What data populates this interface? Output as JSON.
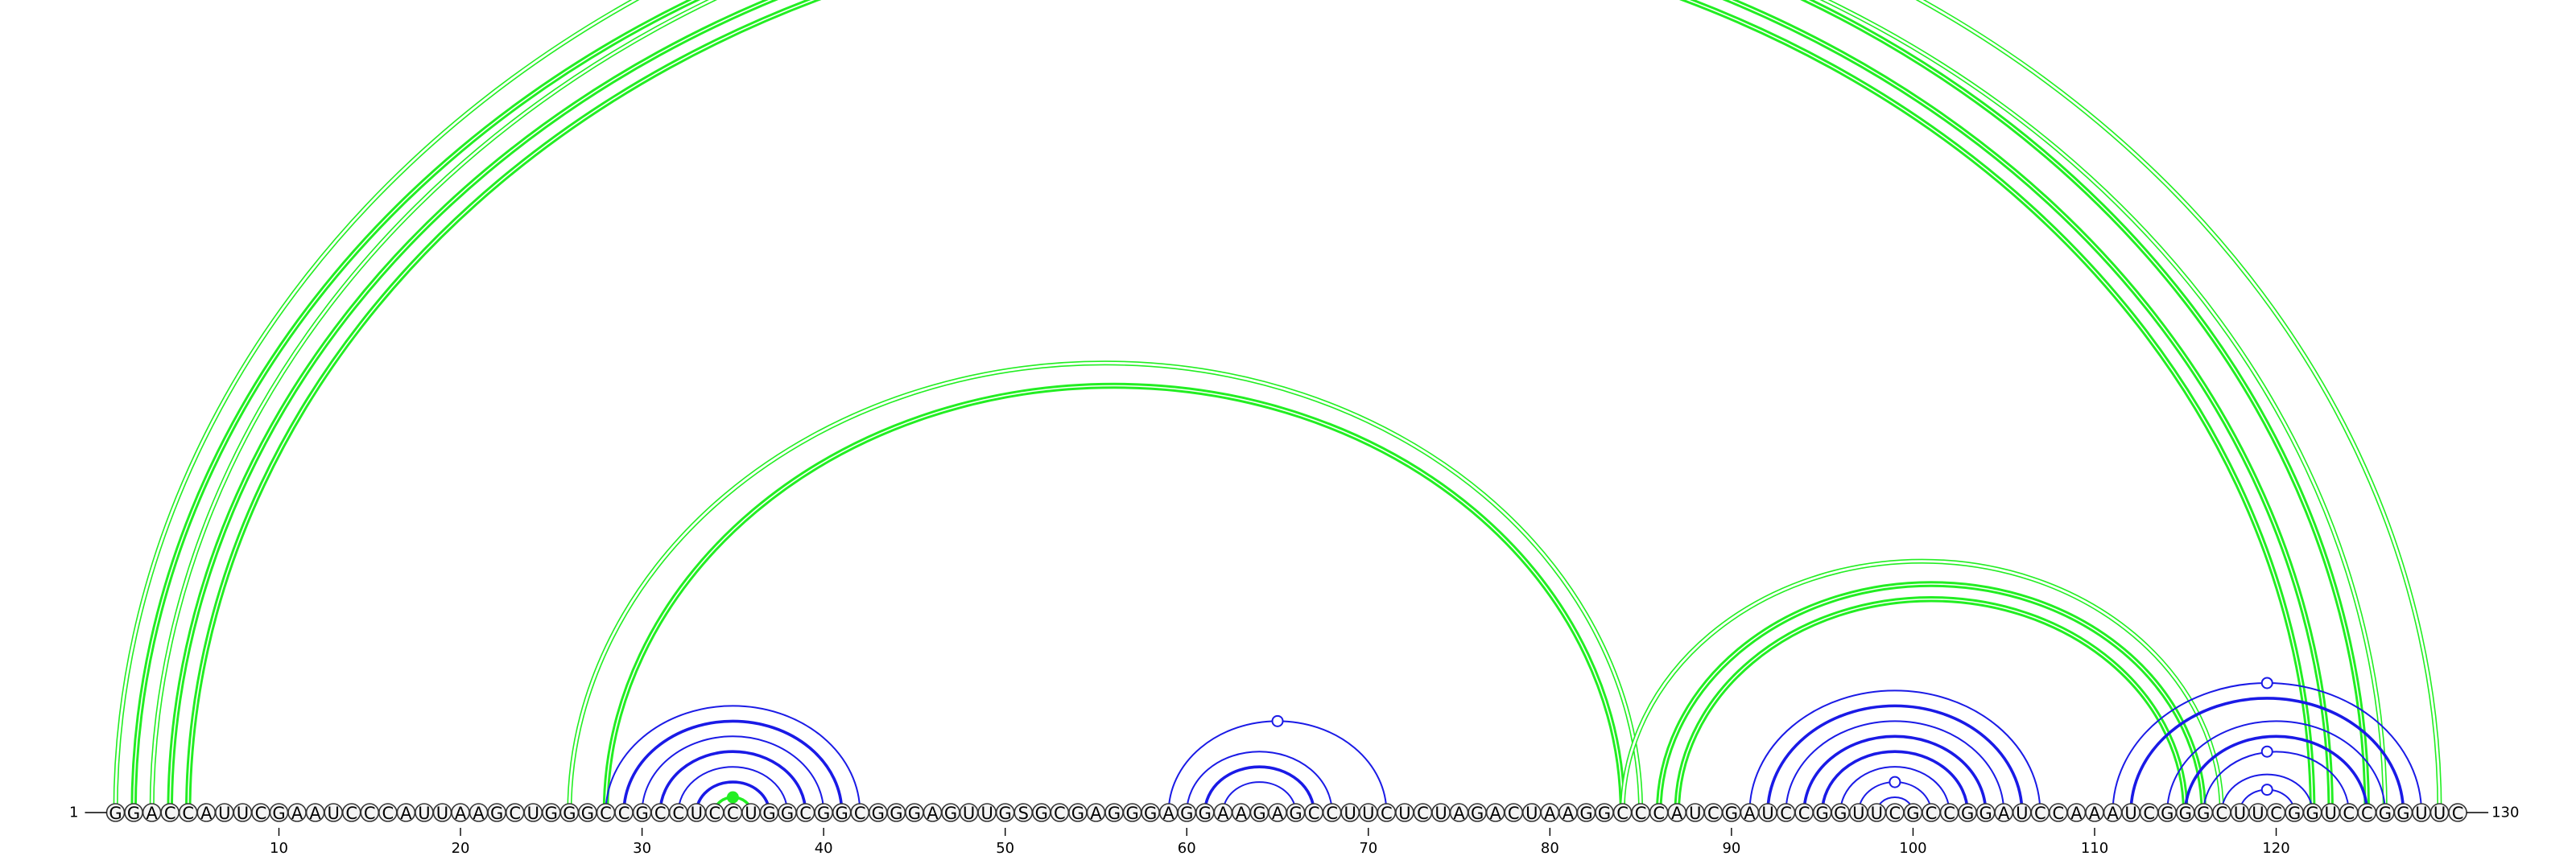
{
  "sequence": "GGACCAUUCGAAUCCCAUUAAGCUGGGCCGCCUCCUGGCGGCGGGAGUUGSGCGAGGGAGGAAGAGCCUUCUCUAGACUAAGGCCCAUCGAUCCGGUUCGCCGGAUCCAAAUCGGGCUUCGGUCCGGUUC",
  "start_label": "1",
  "end_label": "130",
  "ticks": [
    "10",
    "20",
    "30",
    "40",
    "50",
    "60",
    "70",
    "80",
    "90",
    "100",
    "110",
    "120"
  ],
  "colors": {
    "green": "#22ee22",
    "blue": "#1a1ae6"
  },
  "chart_data": {
    "type": "arc-diagram",
    "positions": 130,
    "arcs": [
      {
        "i": 1,
        "j": 129,
        "color": "green",
        "style": "double-thin"
      },
      {
        "i": 2,
        "j": 125,
        "color": "green",
        "style": "double-thick"
      },
      {
        "i": 3,
        "j": 126,
        "color": "green",
        "style": "double-thin"
      },
      {
        "i": 4,
        "j": 123,
        "color": "green",
        "style": "double-thick"
      },
      {
        "i": 5,
        "j": 122,
        "color": "green",
        "style": "double-thick"
      },
      {
        "i": 26,
        "j": 85,
        "color": "green",
        "style": "double-thin"
      },
      {
        "i": 28,
        "j": 84,
        "color": "green",
        "style": "double-thick"
      },
      {
        "i": 84,
        "j": 117,
        "color": "green",
        "style": "double-thin"
      },
      {
        "i": 86,
        "j": 116,
        "color": "green",
        "style": "double-thick"
      },
      {
        "i": 87,
        "j": 115,
        "color": "green",
        "style": "double-thick"
      },
      {
        "i": 28,
        "j": 42,
        "color": "blue",
        "style": "thin"
      },
      {
        "i": 29,
        "j": 41,
        "color": "blue",
        "style": "thick"
      },
      {
        "i": 30,
        "j": 40,
        "color": "blue",
        "style": "thin"
      },
      {
        "i": 31,
        "j": 39,
        "color": "blue",
        "style": "thick"
      },
      {
        "i": 32,
        "j": 38,
        "color": "blue",
        "style": "thin"
      },
      {
        "i": 33,
        "j": 37,
        "color": "blue",
        "style": "thick"
      },
      {
        "i": 34,
        "j": 36,
        "color": "green",
        "style": "thick"
      },
      {
        "i": 59,
        "j": 71,
        "color": "blue",
        "style": "thin"
      },
      {
        "i": 60,
        "j": 68,
        "color": "blue",
        "style": "thin"
      },
      {
        "i": 61,
        "j": 67,
        "color": "blue",
        "style": "thick"
      },
      {
        "i": 62,
        "j": 66,
        "color": "blue",
        "style": "thin"
      },
      {
        "i": 91,
        "j": 107,
        "color": "blue",
        "style": "thin"
      },
      {
        "i": 92,
        "j": 106,
        "color": "blue",
        "style": "thick"
      },
      {
        "i": 93,
        "j": 105,
        "color": "blue",
        "style": "thin"
      },
      {
        "i": 94,
        "j": 104,
        "color": "blue",
        "style": "thick"
      },
      {
        "i": 95,
        "j": 103,
        "color": "blue",
        "style": "thick"
      },
      {
        "i": 96,
        "j": 102,
        "color": "blue",
        "style": "thin"
      },
      {
        "i": 97,
        "j": 101,
        "color": "blue",
        "style": "thin"
      },
      {
        "i": 98,
        "j": 100,
        "color": "blue",
        "style": "thin"
      },
      {
        "i": 111,
        "j": 128,
        "color": "blue",
        "style": "thin"
      },
      {
        "i": 112,
        "j": 127,
        "color": "blue",
        "style": "thick"
      },
      {
        "i": 114,
        "j": 126,
        "color": "blue",
        "style": "thin"
      },
      {
        "i": 115,
        "j": 125,
        "color": "blue",
        "style": "thick"
      },
      {
        "i": 116,
        "j": 124,
        "color": "blue",
        "style": "thin"
      },
      {
        "i": 117,
        "j": 122,
        "color": "blue",
        "style": "thin"
      },
      {
        "i": 118,
        "j": 121,
        "color": "blue",
        "style": "thin"
      }
    ],
    "markers": [
      {
        "center": 65,
        "arc_index": 0,
        "filled": false,
        "color": "green"
      },
      {
        "center": 35,
        "arc_index": 16,
        "filled": true,
        "color": "green"
      },
      {
        "center": 65,
        "arc_index": 17,
        "filled": false,
        "color": "blue"
      },
      {
        "center": 99,
        "arc_index": 27,
        "filled": false,
        "color": "blue"
      },
      {
        "center": 119.5,
        "arc_index": 29,
        "filled": false,
        "color": "blue"
      },
      {
        "center": 119.5,
        "arc_index": 33,
        "filled": false,
        "color": "blue"
      },
      {
        "center": 119.5,
        "arc_index": 35,
        "filled": false,
        "color": "blue"
      }
    ]
  }
}
